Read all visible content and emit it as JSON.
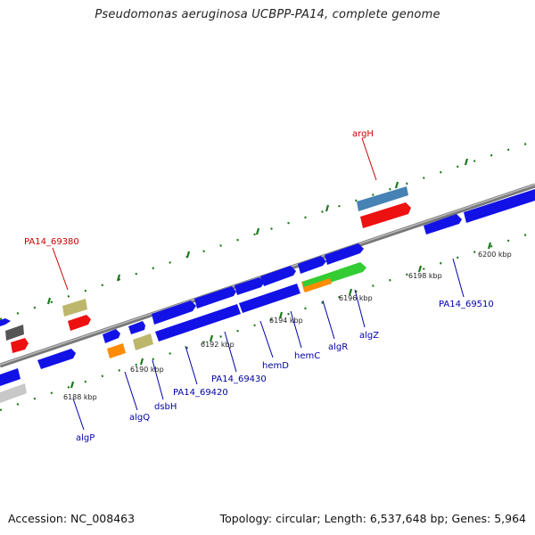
{
  "title": "Pseudomonas aeruginosa UCBPP-PA14, complete genome",
  "footer": {
    "accession": "Accession: NC_008463",
    "summary": "Topology: circular; Length: 6,537,648 bp; Genes: 5,964"
  },
  "colors": {
    "forward_gene": "#1212e6",
    "reverse_gene": "#1212e6",
    "tick_green": "#1a7a1a",
    "backbone": "#888888",
    "label_blue": "#0000aa",
    "label_red": "#cc0000"
  },
  "scale_ticks": [
    "6188 kbp",
    "6190 kbp",
    "6192 kbp",
    "6194 kbp",
    "6196 kbp",
    "6198 kbp",
    "6200 kbp"
  ],
  "labels": {
    "argH": "argH",
    "PA14_69380": "PA14_69380",
    "PA14_69510": "PA14_69510",
    "algZ": "algZ",
    "algR": "algR",
    "hemC": "hemC",
    "hemD": "hemD",
    "PA14_69430": "PA14_69430",
    "PA14_69420": "PA14_69420",
    "dsbH": "dsbH",
    "algQ": "algQ",
    "algP": "algP"
  }
}
